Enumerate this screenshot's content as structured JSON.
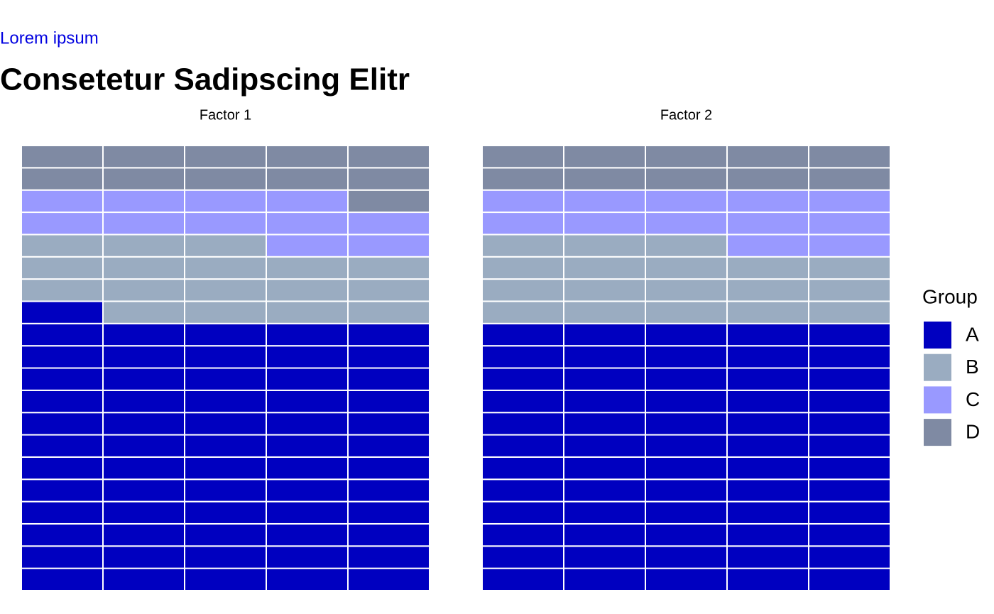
{
  "chart_data": {
    "type": "waffle",
    "subtitle": "Lorem ipsum",
    "title": "Consetetur Sadipscing Elitr",
    "legend_title": "Group",
    "categories": [
      "A",
      "B",
      "C",
      "D"
    ],
    "colors": [
      "#0000c0",
      "#9aacc1",
      "#9999ff",
      "#7f8aa3"
    ],
    "columns": 5,
    "panels": [
      {
        "title": "Factor 1",
        "values": [
          61,
          17,
          11,
          11
        ]
      },
      {
        "title": "Factor 2",
        "values": [
          60,
          18,
          12,
          10
        ]
      }
    ]
  }
}
